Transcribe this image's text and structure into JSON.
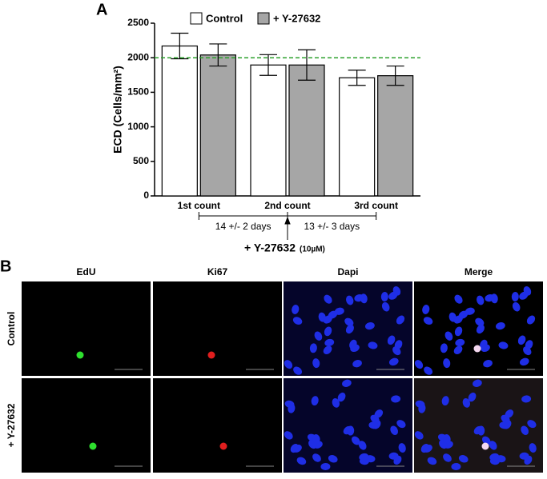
{
  "panel_a_label": "A",
  "chart_data": {
    "type": "bar",
    "ylabel": "ECD (Cells/mm²)",
    "categories": [
      "1st count",
      "2nd count",
      "3rd count"
    ],
    "series": [
      {
        "name": "Control",
        "color": "#ffffff",
        "values": [
          2170,
          1895,
          1710
        ],
        "errors": [
          185,
          150,
          110
        ]
      },
      {
        "name": "+ Y-27632",
        "color": "#a6a6a6",
        "values": [
          2040,
          1895,
          1740
        ],
        "errors": [
          160,
          220,
          140
        ]
      }
    ],
    "ylim": [
      0,
      2500
    ],
    "yticks": [
      0,
      500,
      1000,
      1500,
      2000,
      2500
    ],
    "reference_line": {
      "value": 2000,
      "color": "#2ca02c"
    },
    "annotations": [
      "14 +/- 2 days",
      "13 +/- 3 days"
    ],
    "treatment_label": "+ Y-27632",
    "treatment_dose": "(10µM)"
  },
  "panel_b": {
    "label": "B",
    "columns": [
      "EdU",
      "Ki67",
      "Dapi",
      "Merge"
    ],
    "rows": [
      "Control",
      "+ Y-27632"
    ]
  }
}
